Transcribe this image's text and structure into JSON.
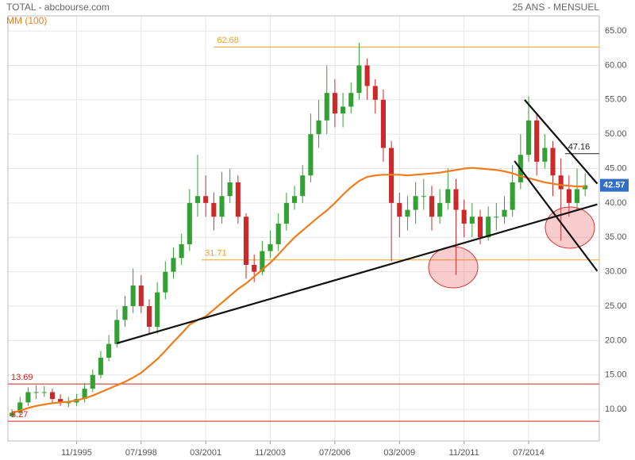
{
  "chart_data": {
    "type": "candlestick",
    "title": "TOTAL - abcbourse.com",
    "subtitle": "25 ANS - MENSUEL",
    "x": [
      "03/1993",
      "07/1993",
      "11/1993",
      "03/1994",
      "07/1994",
      "11/1994",
      "03/1995",
      "07/1995",
      "11/1995",
      "03/1996",
      "07/1996",
      "11/1996",
      "03/1997",
      "07/1997",
      "11/1997",
      "03/1998",
      "07/1998",
      "11/1998",
      "03/1999",
      "07/1999",
      "11/1999",
      "03/2000",
      "07/2000",
      "11/2000",
      "03/2001",
      "07/2001",
      "11/2001",
      "03/2002",
      "07/2002",
      "11/2002",
      "03/2003",
      "07/2003",
      "11/2003",
      "03/2004",
      "07/2004",
      "11/2004",
      "03/2005",
      "07/2005",
      "11/2005",
      "03/2006",
      "07/2006",
      "11/2006",
      "03/2007",
      "07/2007",
      "11/2007",
      "03/2008",
      "07/2008",
      "11/2008",
      "03/2009",
      "07/2009",
      "11/2009",
      "03/2010",
      "07/2010",
      "11/2010",
      "03/2011",
      "07/2011",
      "11/2011",
      "03/2012",
      "07/2012",
      "11/2012",
      "03/2013",
      "07/2013",
      "11/2013",
      "03/2014",
      "07/2014",
      "11/2014",
      "03/2015",
      "07/2015",
      "11/2015",
      "03/2016",
      "07/2016",
      "11/2016"
    ],
    "open": [
      9,
      9.5,
      11,
      12.5,
      12.5,
      12.5,
      11.5,
      11,
      11,
      11.5,
      13,
      15,
      17.5,
      19.5,
      23,
      25,
      28,
      25,
      22,
      27,
      30,
      32,
      34,
      40,
      41,
      40,
      38,
      41,
      43,
      38,
      31,
      30,
      33,
      34,
      37,
      40,
      41,
      44,
      50,
      52,
      56,
      53,
      54,
      56,
      60,
      57,
      55,
      48,
      40,
      38,
      39,
      41,
      41,
      38,
      40,
      42,
      39,
      37,
      38,
      35,
      38,
      38,
      39,
      43,
      47,
      52,
      46,
      48,
      44,
      42,
      40,
      42
    ],
    "high": [
      10,
      11.8,
      13.2,
      13.5,
      13.4,
      13,
      12.2,
      11.8,
      12.2,
      13.8,
      15.8,
      18.5,
      20.8,
      24.5,
      26.5,
      30.5,
      29.5,
      26,
      28.5,
      31.5,
      33.5,
      35.5,
      42,
      47,
      44,
      41.5,
      44.5,
      45,
      44,
      38.5,
      32.5,
      34.5,
      36,
      38.5,
      41.5,
      42.5,
      45.5,
      53,
      55,
      60,
      58,
      56,
      57.5,
      63.3,
      61,
      58,
      56.5,
      49,
      41.5,
      41,
      43,
      43.5,
      42.5,
      42,
      45,
      43.5,
      40.5,
      40,
      39,
      39.5,
      40,
      41,
      45.5,
      50,
      55.5,
      53,
      50,
      49,
      46.5,
      44,
      45,
      44.3
    ],
    "low": [
      8.8,
      9.2,
      10.5,
      11.5,
      11.8,
      11,
      10.5,
      10.3,
      10.5,
      11,
      12.5,
      14.5,
      17,
      19,
      22,
      24,
      24,
      21,
      21,
      26,
      29,
      31,
      33,
      38,
      38,
      36,
      37,
      40,
      37,
      29,
      28.5,
      29.5,
      32,
      33,
      36,
      39,
      40,
      43,
      48,
      50,
      51,
      51,
      53,
      55,
      55,
      53,
      46,
      31.5,
      35,
      36,
      37,
      39,
      36,
      37,
      39,
      29.5,
      35,
      35,
      34,
      34.5,
      36,
      37,
      38,
      42,
      46,
      44,
      45,
      41,
      34.5,
      38,
      39,
      41
    ],
    "close": [
      9.5,
      11,
      12.5,
      12.5,
      12.5,
      11.5,
      11,
      11,
      11.5,
      13,
      15,
      17.5,
      19.5,
      23,
      25,
      28,
      25,
      22,
      27,
      30,
      32,
      34,
      40,
      41,
      40,
      38,
      41,
      43,
      38,
      31,
      30,
      33,
      34,
      37,
      40,
      41,
      44,
      50,
      52,
      56,
      53,
      54,
      56,
      60,
      57,
      55,
      48,
      40,
      38,
      39,
      41,
      41,
      38,
      40,
      42,
      39,
      37,
      38,
      35,
      38,
      38,
      39,
      43,
      47,
      52,
      46,
      48,
      44,
      42,
      40,
      42,
      42.57
    ],
    "up_color": "#33a033",
    "down_color": "#cc2a2a",
    "moving_average": {
      "name": "MM (100)",
      "color": "#f07c1c",
      "values": [
        9.5,
        9.8,
        10.2,
        10.5,
        10.7,
        10.9,
        11.0,
        11.1,
        11.3,
        11.6,
        12.0,
        12.5,
        13.0,
        13.5,
        14.0,
        14.6,
        15.3,
        16.3,
        17.3,
        18.5,
        19.8,
        21.0,
        22.3,
        23.0,
        23.5,
        24.5,
        25.5,
        26.5,
        27.5,
        28.3,
        29.3,
        30.3,
        31.3,
        32.5,
        33.8,
        35.0,
        36.0,
        37.0,
        38.0,
        38.9,
        40.0,
        41.2,
        42.3,
        43.2,
        43.8,
        44.0,
        44.1,
        44.1,
        44.1,
        44.0,
        44.1,
        44.2,
        44.3,
        44.4,
        44.6,
        44.8,
        45.0,
        45.1,
        45.0,
        44.9,
        44.8,
        44.6,
        44.3,
        43.9,
        43.6,
        43.3,
        43.0,
        42.8,
        42.6,
        42.5,
        42.4,
        42.4
      ]
    },
    "levels": [
      {
        "value": 62.68,
        "color": "#f0a020",
        "start": "07/2001"
      },
      {
        "value": 31.71,
        "color": "#f0a020",
        "start": "01/2001"
      },
      {
        "value": 13.69,
        "color": "#d42020",
        "start": "01/1993"
      },
      {
        "value": 8.27,
        "color": "#d42020",
        "start": "01/1993"
      },
      {
        "value": 47.16,
        "color": "#222222",
        "start": "01/2016"
      }
    ],
    "last_price": {
      "value": 42.57,
      "color": "#2f6fc8"
    },
    "trendlines": [
      {
        "x": [
          "07/1997",
          "05/2017"
        ],
        "values": [
          19.6,
          39.8
        ]
      },
      {
        "x": [
          "05/2014",
          "05/2017"
        ],
        "values": [
          55.0,
          42.8
        ]
      },
      {
        "x": [
          "12/2013",
          "05/2017"
        ],
        "values": [
          46.1,
          30.1
        ]
      }
    ],
    "xlim": [
      "01/1993",
      "06/2017"
    ],
    "xticks": [
      "11/1995",
      "07/1998",
      "03/2001",
      "11/2003",
      "07/2006",
      "03/2009",
      "11/2011",
      "07/2014"
    ],
    "ylim": [
      5.4,
      67.2
    ],
    "yticks": [
      {
        "value": 10,
        "label": "10.00"
      },
      {
        "value": 15,
        "label": "15.00"
      },
      {
        "value": 20,
        "label": "20.00"
      },
      {
        "value": 25,
        "label": "25.00"
      },
      {
        "value": 30,
        "label": "30.00"
      },
      {
        "value": 35,
        "label": "35.00"
      },
      {
        "value": 40,
        "label": "40.00"
      },
      {
        "value": 45,
        "label": "45.00"
      },
      {
        "value": 50,
        "label": "50.00"
      },
      {
        "value": 55,
        "label": "55.00"
      },
      {
        "value": 60,
        "label": "60.00"
      },
      {
        "value": 65,
        "label": "65.00"
      }
    ],
    "grid": true
  }
}
